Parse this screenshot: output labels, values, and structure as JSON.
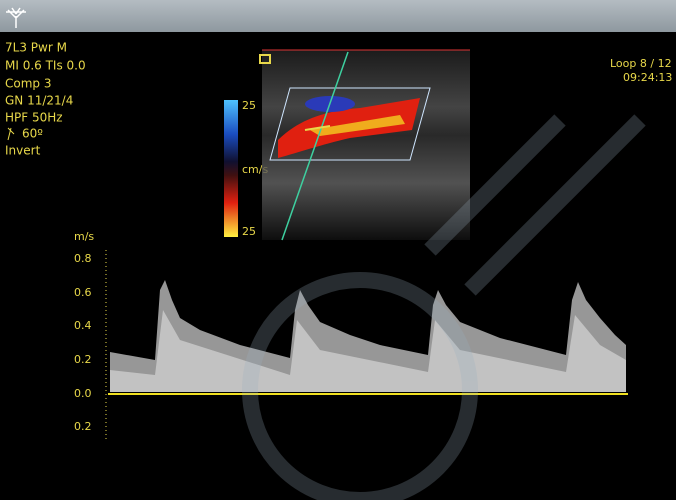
{
  "header": {
    "lines": [
      "7L3  Pwr M",
      "MI 0.6  TIs 0.0",
      "Comp 3",
      "GN  11/21/4",
      "HPF   50Hz",
      "60º",
      "Invert"
    ]
  },
  "status": {
    "loop": "Loop 8 / 12",
    "time": "09:24:13"
  },
  "color_scale": {
    "top": "25",
    "unit": "cm/s",
    "bottom": "25"
  },
  "doppler": {
    "unit": "m/s",
    "ticks": [
      "0.8",
      "0.6",
      "0.4",
      "0.2",
      "0.0",
      "0.2"
    ]
  }
}
